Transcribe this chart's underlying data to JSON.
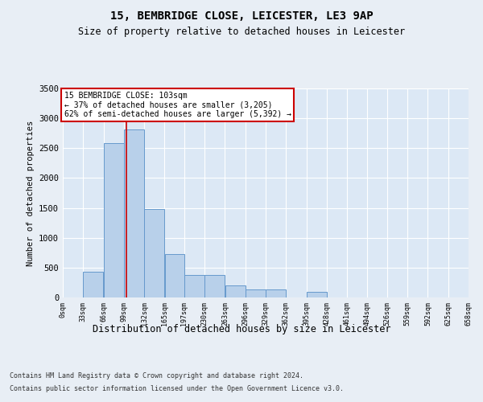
{
  "title": "15, BEMBRIDGE CLOSE, LEICESTER, LE3 9AP",
  "subtitle": "Size of property relative to detached houses in Leicester",
  "xlabel": "Distribution of detached houses by size in Leicester",
  "ylabel": "Number of detached properties",
  "annotation_line1": "15 BEMBRIDGE CLOSE: 103sqm",
  "annotation_line2": "← 37% of detached houses are smaller (3,205)",
  "annotation_line3": "62% of semi-detached houses are larger (5,392) →",
  "property_size": 103,
  "bin_edges": [
    0,
    33,
    66,
    99,
    132,
    165,
    197,
    230,
    263,
    296,
    329,
    362,
    395,
    428,
    461,
    494,
    526,
    559,
    592,
    625,
    658
  ],
  "bar_heights": [
    0,
    430,
    2580,
    2820,
    1480,
    730,
    375,
    375,
    200,
    130,
    130,
    0,
    100,
    0,
    0,
    0,
    0,
    0,
    0,
    0
  ],
  "bar_color": "#b8d0ea",
  "bar_edge_color": "#6699cc",
  "line_color": "#cc0000",
  "background_color": "#e8eef5",
  "plot_bg_color": "#dce8f5",
  "grid_color": "#ffffff",
  "ylim_max": 3500,
  "yticks": [
    0,
    500,
    1000,
    1500,
    2000,
    2500,
    3000,
    3500
  ],
  "footer_line1": "Contains HM Land Registry data © Crown copyright and database right 2024.",
  "footer_line2": "Contains public sector information licensed under the Open Government Licence v3.0."
}
